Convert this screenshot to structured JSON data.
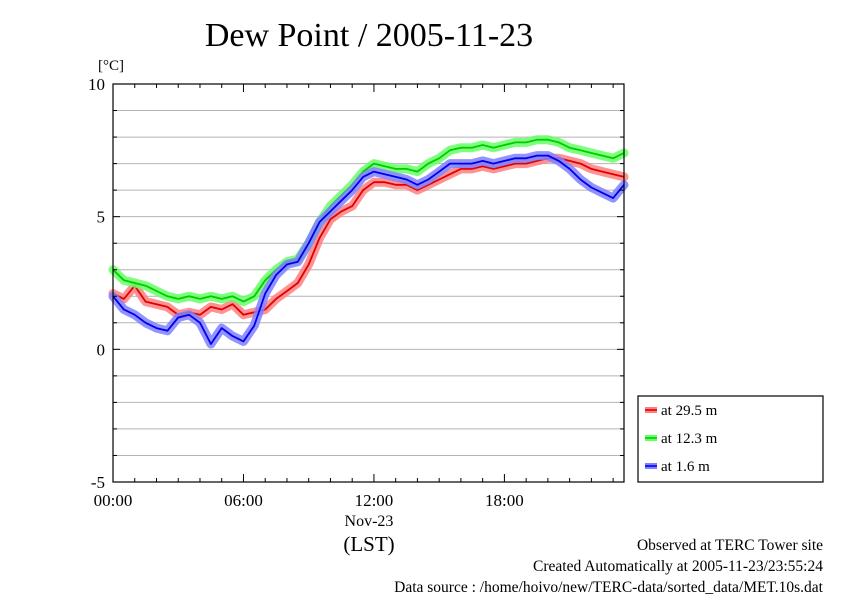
{
  "chart_data": {
    "type": "line",
    "title": "Dew Point / 2005-11-23",
    "ylabel": "[°C]",
    "ylim": [
      -5,
      10
    ],
    "xlim": [
      0,
      23.5
    ],
    "y_ticks": [
      {
        "value": -5,
        "label": "-5"
      },
      {
        "value": 0,
        "label": "0"
      },
      {
        "value": 5,
        "label": "5"
      },
      {
        "value": 10,
        "label": "10"
      }
    ],
    "x_ticks": [
      {
        "value": 0,
        "label": "00:00"
      },
      {
        "value": 6,
        "label": "06:00"
      },
      {
        "value": 12,
        "label": "12:00"
      },
      {
        "value": 18,
        "label": "18:00"
      }
    ],
    "x_date_label": "Nov-23",
    "x_unit_label": "(LST)",
    "grid": true,
    "legend_position": "right-bottom, outside plot",
    "series": [
      {
        "name": "at 29.5 m",
        "line_color": "#e00000",
        "band_color": "#ff8080",
        "x": [
          0,
          0.5,
          1,
          1.5,
          2,
          2.5,
          3,
          3.5,
          4,
          4.5,
          5,
          5.5,
          6,
          6.5,
          7,
          7.5,
          8,
          8.5,
          9,
          9.5,
          10,
          10.5,
          11,
          11.5,
          12,
          12.5,
          13,
          13.5,
          14,
          14.5,
          15,
          15.5,
          16,
          16.5,
          17,
          17.5,
          18,
          18.5,
          19,
          19.5,
          20,
          20.5,
          21,
          21.5,
          22,
          22.5,
          23,
          23.5
        ],
        "values": [
          2.1,
          1.9,
          2.4,
          1.8,
          1.7,
          1.6,
          1.3,
          1.4,
          1.3,
          1.6,
          1.5,
          1.7,
          1.3,
          1.4,
          1.5,
          1.9,
          2.2,
          2.5,
          3.2,
          4.2,
          4.9,
          5.2,
          5.4,
          6.0,
          6.3,
          6.3,
          6.2,
          6.2,
          6.0,
          6.2,
          6.4,
          6.6,
          6.8,
          6.8,
          6.9,
          6.8,
          6.9,
          7.0,
          7.0,
          7.1,
          7.2,
          7.2,
          7.1,
          7.0,
          6.8,
          6.7,
          6.6,
          6.5
        ]
      },
      {
        "name": "at 12.3 m",
        "line_color": "#00cc00",
        "band_color": "#66ff66",
        "x": [
          0,
          0.5,
          1,
          1.5,
          2,
          2.5,
          3,
          3.5,
          4,
          4.5,
          5,
          5.5,
          6,
          6.5,
          7,
          7.5,
          8,
          8.5,
          9,
          9.5,
          10,
          10.5,
          11,
          11.5,
          12,
          12.5,
          13,
          13.5,
          14,
          14.5,
          15,
          15.5,
          16,
          16.5,
          17,
          17.5,
          18,
          18.5,
          19,
          19.5,
          20,
          20.5,
          21,
          21.5,
          22,
          22.5,
          23,
          23.5
        ],
        "values": [
          3.0,
          2.6,
          2.5,
          2.4,
          2.2,
          2.0,
          1.9,
          2.0,
          1.9,
          2.0,
          1.9,
          2.0,
          1.8,
          2.0,
          2.6,
          3.0,
          3.3,
          3.4,
          4.0,
          4.8,
          5.4,
          5.8,
          6.2,
          6.7,
          7.0,
          6.9,
          6.8,
          6.8,
          6.7,
          7.0,
          7.2,
          7.5,
          7.6,
          7.6,
          7.7,
          7.6,
          7.7,
          7.8,
          7.8,
          7.9,
          7.9,
          7.8,
          7.6,
          7.5,
          7.4,
          7.3,
          7.2,
          7.4
        ]
      },
      {
        "name": "at 1.6 m",
        "line_color": "#0000ee",
        "band_color": "#8080ff",
        "x": [
          0,
          0.5,
          1,
          1.5,
          2,
          2.5,
          3,
          3.5,
          4,
          4.5,
          5,
          5.5,
          6,
          6.5,
          7,
          7.5,
          8,
          8.5,
          9,
          9.5,
          10,
          10.5,
          11,
          11.5,
          12,
          12.5,
          13,
          13.5,
          14,
          14.5,
          15,
          15.5,
          16,
          16.5,
          17,
          17.5,
          18,
          18.5,
          19,
          19.5,
          20,
          20.5,
          21,
          21.5,
          22,
          22.5,
          23,
          23.5
        ],
        "values": [
          2.0,
          1.5,
          1.3,
          1.0,
          0.8,
          0.7,
          1.2,
          1.3,
          1.0,
          0.2,
          0.8,
          0.5,
          0.3,
          0.9,
          2.1,
          2.8,
          3.2,
          3.3,
          4.0,
          4.8,
          5.2,
          5.6,
          6.0,
          6.5,
          6.7,
          6.6,
          6.5,
          6.4,
          6.2,
          6.4,
          6.7,
          7.0,
          7.0,
          7.0,
          7.1,
          7.0,
          7.1,
          7.2,
          7.2,
          7.3,
          7.3,
          7.1,
          6.8,
          6.4,
          6.1,
          5.9,
          5.7,
          6.2
        ]
      }
    ]
  },
  "footer": {
    "observed": "Observed at TERC Tower site",
    "created": "Created Automatically at 2005-11-23/23:55:24",
    "source": "Data source : /home/hoivo/new/TERC-data/sorted_data/MET.10s.dat"
  }
}
